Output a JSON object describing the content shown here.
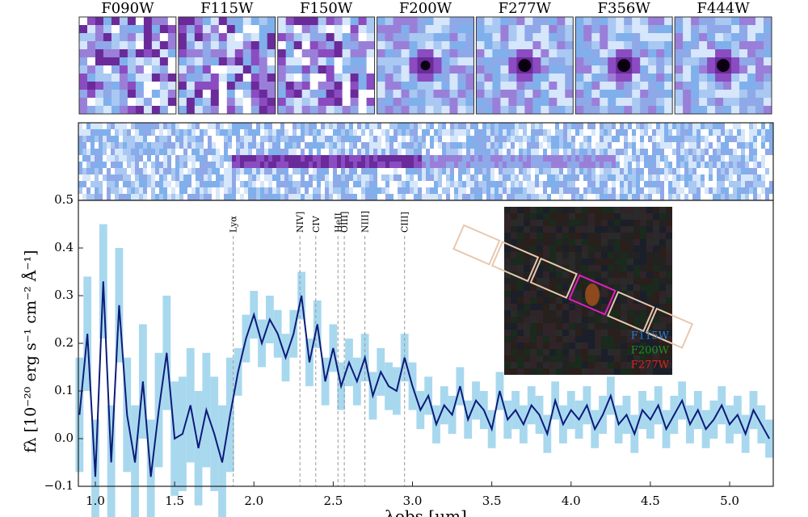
{
  "chart_data": {
    "type": "line",
    "cutouts": [
      "F090W",
      "F115W",
      "F150W",
      "F200W",
      "F277W",
      "F356W",
      "F444W"
    ],
    "x": [
      0.9,
      0.95,
      1.0,
      1.05,
      1.1,
      1.15,
      1.2,
      1.25,
      1.3,
      1.35,
      1.4,
      1.45,
      1.5,
      1.55,
      1.6,
      1.65,
      1.7,
      1.75,
      1.8,
      1.85,
      1.9,
      1.95,
      2.0,
      2.05,
      2.1,
      2.15,
      2.2,
      2.25,
      2.3,
      2.35,
      2.4,
      2.45,
      2.5,
      2.55,
      2.6,
      2.65,
      2.7,
      2.75,
      2.8,
      2.85,
      2.9,
      2.95,
      3.0,
      3.05,
      3.1,
      3.15,
      3.2,
      3.25,
      3.3,
      3.35,
      3.4,
      3.45,
      3.5,
      3.55,
      3.6,
      3.65,
      3.7,
      3.75,
      3.8,
      3.85,
      3.9,
      3.95,
      4.0,
      4.05,
      4.1,
      4.15,
      4.2,
      4.25,
      4.3,
      4.35,
      4.4,
      4.45,
      4.5,
      4.55,
      4.6,
      4.65,
      4.7,
      4.75,
      4.8,
      4.85,
      4.9,
      4.95,
      5.0,
      5.05,
      5.1,
      5.15,
      5.2,
      5.25
    ],
    "series": [
      {
        "color": "#0d1b7a",
        "error_color": "#a8d8ee",
        "values": [
          0.05,
          0.22,
          -0.08,
          0.33,
          -0.05,
          0.28,
          0.05,
          -0.05,
          0.12,
          -0.08,
          0.06,
          0.18,
          0.0,
          0.01,
          0.07,
          -0.02,
          0.06,
          0.01,
          -0.05,
          0.05,
          0.14,
          0.21,
          0.26,
          0.2,
          0.25,
          0.22,
          0.17,
          0.22,
          0.3,
          0.16,
          0.24,
          0.12,
          0.19,
          0.11,
          0.16,
          0.12,
          0.17,
          0.09,
          0.14,
          0.11,
          0.1,
          0.17,
          0.11,
          0.06,
          0.09,
          0.03,
          0.07,
          0.05,
          0.11,
          0.04,
          0.08,
          0.06,
          0.02,
          0.1,
          0.04,
          0.06,
          0.03,
          0.07,
          0.05,
          0.01,
          0.08,
          0.03,
          0.06,
          0.04,
          0.07,
          0.02,
          0.05,
          0.09,
          0.03,
          0.05,
          0.01,
          0.06,
          0.04,
          0.07,
          0.02,
          0.05,
          0.08,
          0.03,
          0.06,
          0.02,
          0.04,
          0.07,
          0.03,
          0.05,
          0.01,
          0.06,
          0.03,
          0.0
        ],
        "errors": [
          0.12,
          0.12,
          0.12,
          0.12,
          0.12,
          0.12,
          0.12,
          0.12,
          0.12,
          0.12,
          0.12,
          0.12,
          0.12,
          0.12,
          0.12,
          0.12,
          0.12,
          0.12,
          0.12,
          0.12,
          0.05,
          0.05,
          0.05,
          0.05,
          0.05,
          0.05,
          0.05,
          0.05,
          0.05,
          0.05,
          0.05,
          0.05,
          0.05,
          0.05,
          0.05,
          0.05,
          0.05,
          0.05,
          0.05,
          0.05,
          0.05,
          0.05,
          0.05,
          0.04,
          0.04,
          0.04,
          0.04,
          0.04,
          0.04,
          0.04,
          0.04,
          0.04,
          0.04,
          0.04,
          0.04,
          0.04,
          0.04,
          0.04,
          0.04,
          0.04,
          0.04,
          0.04,
          0.04,
          0.04,
          0.04,
          0.04,
          0.04,
          0.04,
          0.04,
          0.04,
          0.04,
          0.04,
          0.04,
          0.04,
          0.04,
          0.04,
          0.04,
          0.04,
          0.04,
          0.04,
          0.04,
          0.04,
          0.04,
          0.04,
          0.04,
          0.04,
          0.04,
          0.04
        ]
      }
    ],
    "lines": [
      {
        "label": "Lyα",
        "x": 1.87
      },
      {
        "label": "NIV]",
        "x": 2.29
      },
      {
        "label": "CIV",
        "x": 2.39
      },
      {
        "label": "HeII",
        "x": 2.53
      },
      {
        "label": "OIII]",
        "x": 2.57
      },
      {
        "label": "NIII]",
        "x": 2.7
      },
      {
        "label": "CIII]",
        "x": 2.95
      }
    ],
    "xlim": [
      0.893,
      5.275
    ],
    "xticks": [
      {
        "value": 1.0,
        "label": "1.0"
      },
      1.5,
      {
        "value": 2.0,
        "label": "2.0"
      },
      2.5,
      {
        "value": 3.0,
        "label": "3.0"
      },
      3.5,
      {
        "value": 4.0,
        "label": "4.0"
      },
      4.5,
      {
        "value": 5.0,
        "label": "5.0"
      }
    ],
    "ylim": [
      -0.1,
      0.5
    ],
    "yticks": [
      {
        "value": -0.1,
        "label": "−0.1"
      },
      {
        "value": 0,
        "label": "0.0"
      },
      0.1,
      0.2,
      0.3,
      0.4,
      0.5
    ],
    "xlabel": "λobs [μm]",
    "ylabel": "fλ [10⁻²⁰ erg s⁻¹ cm⁻² Å⁻¹]",
    "inset_legend": [
      {
        "label": "F115W",
        "color": "#2a7fd4"
      },
      {
        "label": "F200W",
        "color": "#1f8f2a"
      },
      {
        "label": "F277W",
        "color": "#e02020"
      }
    ]
  }
}
